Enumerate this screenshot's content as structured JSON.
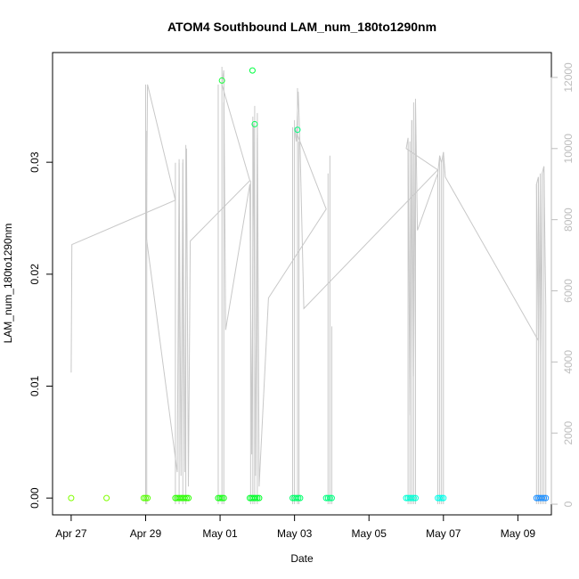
{
  "chart_data": {
    "type": "scatter",
    "title": "ATOM4 Southbound LAM_num_180to1290nm",
    "xlabel": "Date",
    "ylabel": "LAM_num_180to1290nm",
    "x_ticks": [
      "Apr 27",
      "Apr 29",
      "May 01",
      "May 03",
      "May 05",
      "May 07",
      "May 09"
    ],
    "x_tick_days": [
      0,
      2,
      4,
      6,
      8,
      10,
      12
    ],
    "xlim_days": [
      -0.5,
      12.9
    ],
    "y_ticks": [
      "0.00",
      "0.01",
      "0.02",
      "0.03"
    ],
    "y_tick_values": [
      0,
      0.01,
      0.02,
      0.03
    ],
    "ylim": [
      -0.0015,
      0.0398
    ],
    "y2_ticks": [
      "0",
      "2000",
      "4000",
      "6000",
      "8000",
      "10000",
      "12000"
    ],
    "y2_tick_values": [
      0,
      2000,
      4000,
      6000,
      8000,
      10000,
      12000
    ],
    "y2lim": [
      -300,
      12700
    ],
    "grid": false,
    "scatter_points": [
      {
        "day": 0.0,
        "value": 0.0,
        "color": "#80ff00"
      },
      {
        "day": 0.95,
        "value": 0.0,
        "color": "#80ff00"
      },
      {
        "day": 1.95,
        "value": 0.0,
        "color": "#55ff00"
      },
      {
        "day": 2.0,
        "value": 0.0,
        "color": "#55ff00"
      },
      {
        "day": 2.05,
        "value": 0.0,
        "color": "#55ff00"
      },
      {
        "day": 2.8,
        "value": 0.0,
        "color": "#2bff00"
      },
      {
        "day": 2.85,
        "value": 0.0,
        "color": "#2bff00"
      },
      {
        "day": 2.9,
        "value": 0.0,
        "color": "#2bff00"
      },
      {
        "day": 2.95,
        "value": 0.0,
        "color": "#2bff00"
      },
      {
        "day": 3.0,
        "value": 0.0,
        "color": "#2bff00"
      },
      {
        "day": 3.05,
        "value": 0.0,
        "color": "#2bff00"
      },
      {
        "day": 3.1,
        "value": 0.0,
        "color": "#2bff00"
      },
      {
        "day": 3.15,
        "value": 0.0,
        "color": "#2bff00"
      },
      {
        "day": 3.95,
        "value": 0.0,
        "color": "#15ff15"
      },
      {
        "day": 4.0,
        "value": 0.0,
        "color": "#15ff15"
      },
      {
        "day": 4.05,
        "value": 0.0,
        "color": "#15ff15"
      },
      {
        "day": 4.1,
        "value": 0.0,
        "color": "#15ff15"
      },
      {
        "day": 4.05,
        "value": 0.0373,
        "color": "#15ff3a"
      },
      {
        "day": 4.8,
        "value": 0.0,
        "color": "#00ff2b"
      },
      {
        "day": 4.85,
        "value": 0.0,
        "color": "#00ff2b"
      },
      {
        "day": 4.9,
        "value": 0.0,
        "color": "#00ff2b"
      },
      {
        "day": 4.95,
        "value": 0.0,
        "color": "#00ff2b"
      },
      {
        "day": 5.0,
        "value": 0.0,
        "color": "#00ff2b"
      },
      {
        "day": 5.05,
        "value": 0.0,
        "color": "#00ff2b"
      },
      {
        "day": 4.87,
        "value": 0.0382,
        "color": "#00ff40"
      },
      {
        "day": 4.93,
        "value": 0.0334,
        "color": "#00ff55"
      },
      {
        "day": 5.95,
        "value": 0.0,
        "color": "#00ff6a"
      },
      {
        "day": 6.0,
        "value": 0.0,
        "color": "#00ff6a"
      },
      {
        "day": 6.05,
        "value": 0.0,
        "color": "#00ff6a"
      },
      {
        "day": 6.1,
        "value": 0.0,
        "color": "#00ff6a"
      },
      {
        "day": 6.15,
        "value": 0.0,
        "color": "#00ff6a"
      },
      {
        "day": 6.08,
        "value": 0.0329,
        "color": "#00ff80"
      },
      {
        "day": 6.85,
        "value": 0.0,
        "color": "#00ff80"
      },
      {
        "day": 6.9,
        "value": 0.0,
        "color": "#00ff80"
      },
      {
        "day": 6.95,
        "value": 0.0,
        "color": "#00ff80"
      },
      {
        "day": 7.0,
        "value": 0.0,
        "color": "#00ff80"
      },
      {
        "day": 9.0,
        "value": 0.0,
        "color": "#00ffd5"
      },
      {
        "day": 9.05,
        "value": 0.0,
        "color": "#00ffd5"
      },
      {
        "day": 9.1,
        "value": 0.0,
        "color": "#00ffd5"
      },
      {
        "day": 9.15,
        "value": 0.0,
        "color": "#00ffd5"
      },
      {
        "day": 9.2,
        "value": 0.0,
        "color": "#00ffd5"
      },
      {
        "day": 9.25,
        "value": 0.0,
        "color": "#00ffd5"
      },
      {
        "day": 9.85,
        "value": 0.0,
        "color": "#00ffea"
      },
      {
        "day": 9.9,
        "value": 0.0,
        "color": "#00ffea"
      },
      {
        "day": 9.95,
        "value": 0.0,
        "color": "#00ffea"
      },
      {
        "day": 10.0,
        "value": 0.0,
        "color": "#00ffea"
      },
      {
        "day": 12.5,
        "value": 0.0,
        "color": "#1e90ff"
      },
      {
        "day": 12.55,
        "value": 0.0,
        "color": "#1e90ff"
      },
      {
        "day": 12.6,
        "value": 0.0,
        "color": "#1e90ff"
      },
      {
        "day": 12.65,
        "value": 0.0,
        "color": "#1e90ff"
      },
      {
        "day": 12.7,
        "value": 0.0,
        "color": "#1e90ff"
      },
      {
        "day": 12.75,
        "value": 0.0,
        "color": "#1e90ff"
      }
    ],
    "line_color": "#c8c8c8",
    "line_points": [
      {
        "day": 0.0,
        "value": 3700
      },
      {
        "day": 0.02,
        "value": 7300
      },
      {
        "day": 2.8,
        "value": 8550
      },
      {
        "day": 2.05,
        "value": 11800
      },
      {
        "day": 2.02,
        "value": 7500
      },
      {
        "day": 2.85,
        "value": 900
      },
      {
        "day": 2.9,
        "value": 9600
      },
      {
        "day": 2.95,
        "value": 800
      },
      {
        "day": 3.0,
        "value": 9700
      },
      {
        "day": 3.05,
        "value": 900
      },
      {
        "day": 3.1,
        "value": 10000
      },
      {
        "day": 3.15,
        "value": 500
      },
      {
        "day": 3.2,
        "value": 7400
      },
      {
        "day": 4.8,
        "value": 9100
      },
      {
        "day": 4.05,
        "value": 11800
      },
      {
        "day": 4.1,
        "value": 12200
      },
      {
        "day": 4.15,
        "value": 4900
      },
      {
        "day": 4.8,
        "value": 9000
      },
      {
        "day": 4.85,
        "value": 1400
      },
      {
        "day": 4.9,
        "value": 10700
      },
      {
        "day": 4.95,
        "value": 800
      },
      {
        "day": 5.0,
        "value": 11000
      },
      {
        "day": 5.05,
        "value": 500
      },
      {
        "day": 5.3,
        "value": 5800
      },
      {
        "day": 6.85,
        "value": 8300
      },
      {
        "day": 6.0,
        "value": 10600
      },
      {
        "day": 6.05,
        "value": 10200
      },
      {
        "day": 6.1,
        "value": 11600
      },
      {
        "day": 6.15,
        "value": 10000
      },
      {
        "day": 6.25,
        "value": 5500
      },
      {
        "day": 9.85,
        "value": 9400
      },
      {
        "day": 9.0,
        "value": 10000
      },
      {
        "day": 9.05,
        "value": 10300
      },
      {
        "day": 9.1,
        "value": 2500
      },
      {
        "day": 9.15,
        "value": 10800
      },
      {
        "day": 9.2,
        "value": 3600
      },
      {
        "day": 9.25,
        "value": 11300
      },
      {
        "day": 9.3,
        "value": 7700
      },
      {
        "day": 9.85,
        "value": 9300
      },
      {
        "day": 9.9,
        "value": 9800
      },
      {
        "day": 9.95,
        "value": 9600
      },
      {
        "day": 10.0,
        "value": 9900
      },
      {
        "day": 10.05,
        "value": 9200
      },
      {
        "day": 12.55,
        "value": 4600
      },
      {
        "day": 12.5,
        "value": 9000
      },
      {
        "day": 12.55,
        "value": 9200
      },
      {
        "day": 12.6,
        "value": 4200
      },
      {
        "day": 12.65,
        "value": 9300
      },
      {
        "day": 12.7,
        "value": 9500
      },
      {
        "day": 12.75,
        "value": 5600
      }
    ],
    "vertical_segments": [
      {
        "day": 2.0,
        "bottom": 0,
        "top": 11800
      },
      {
        "day": 2.03,
        "bottom": 0,
        "top": 10500
      },
      {
        "day": 2.8,
        "bottom": 0,
        "top": 9600
      },
      {
        "day": 2.9,
        "bottom": 0,
        "top": 9700
      },
      {
        "day": 3.0,
        "bottom": 0,
        "top": 9600
      },
      {
        "day": 3.08,
        "bottom": 0,
        "top": 10100
      },
      {
        "day": 3.95,
        "bottom": 0,
        "top": 11800
      },
      {
        "day": 4.05,
        "bottom": 0,
        "top": 12300
      },
      {
        "day": 4.1,
        "bottom": 0,
        "top": 11300
      },
      {
        "day": 4.82,
        "bottom": 0,
        "top": 9100
      },
      {
        "day": 4.88,
        "bottom": 0,
        "top": 10900
      },
      {
        "day": 4.93,
        "bottom": 0,
        "top": 11200
      },
      {
        "day": 5.0,
        "bottom": 0,
        "top": 10300
      },
      {
        "day": 5.95,
        "bottom": 0,
        "top": 10600
      },
      {
        "day": 6.0,
        "bottom": 0,
        "top": 10800
      },
      {
        "day": 6.08,
        "bottom": 0,
        "top": 11700
      },
      {
        "day": 6.12,
        "bottom": 0,
        "top": 10200
      },
      {
        "day": 6.9,
        "bottom": 0,
        "top": 9300
      },
      {
        "day": 6.95,
        "bottom": 0,
        "top": 9800
      },
      {
        "day": 7.0,
        "bottom": 0,
        "top": 5000
      },
      {
        "day": 9.05,
        "bottom": 0,
        "top": 10000
      },
      {
        "day": 9.1,
        "bottom": 0,
        "top": 10200
      },
      {
        "day": 9.15,
        "bottom": 0,
        "top": 10800
      },
      {
        "day": 9.2,
        "bottom": 0,
        "top": 11300
      },
      {
        "day": 9.25,
        "bottom": 0,
        "top": 11400
      },
      {
        "day": 9.85,
        "bottom": 0,
        "top": 9400
      },
      {
        "day": 9.9,
        "bottom": 0,
        "top": 9800
      },
      {
        "day": 9.95,
        "bottom": 0,
        "top": 9600
      },
      {
        "day": 10.0,
        "bottom": 0,
        "top": 9900
      },
      {
        "day": 12.5,
        "bottom": 0,
        "top": 9000
      },
      {
        "day": 12.55,
        "bottom": 0,
        "top": 9200
      },
      {
        "day": 12.6,
        "bottom": 0,
        "top": 9300
      },
      {
        "day": 12.65,
        "bottom": 0,
        "top": 9300
      },
      {
        "day": 12.7,
        "bottom": 0,
        "top": 9500
      },
      {
        "day": 12.75,
        "bottom": 0,
        "top": 5600
      }
    ]
  }
}
